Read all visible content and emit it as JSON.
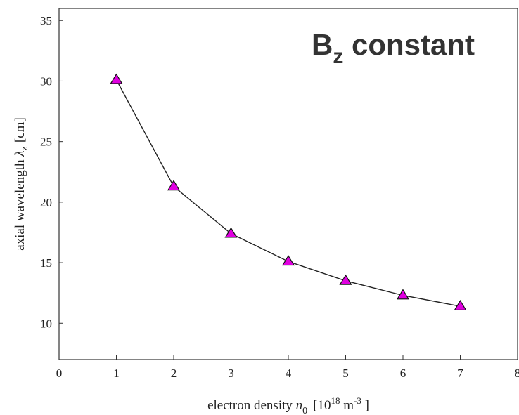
{
  "chart_data": {
    "type": "line",
    "x": [
      1,
      2,
      3,
      4,
      5,
      6,
      7
    ],
    "series": [
      {
        "values": [
          30.1,
          21.3,
          17.4,
          15.1,
          13.5,
          12.3,
          11.4
        ]
      }
    ],
    "xlim": [
      0,
      8
    ],
    "ylim": [
      7,
      36
    ],
    "x_ticks": [
      "0",
      "1",
      "2",
      "3",
      "4",
      "5",
      "6",
      "7",
      "8"
    ],
    "y_ticks": [
      "10",
      "15",
      "20",
      "25",
      "30",
      "35"
    ],
    "xlabel": {
      "text": "electron density ",
      "symbol": "n",
      "symbol_sub": "0",
      "unit_open": "[10",
      "unit_exp": "18",
      "unit_mid": " m",
      "unit_exp2": "-3",
      "unit_close": " ]"
    },
    "ylabel": {
      "text": "axial wavelength ",
      "symbol": "λ",
      "symbol_sub": "z",
      "unit": "[cm]"
    },
    "annotation": {
      "main": "B",
      "sub": "z",
      "rest": " constant"
    },
    "grid": false,
    "marker": "triangle",
    "colors": {
      "marker_fill": "#e000e0",
      "line": "#222222",
      "axis": "#333333"
    }
  }
}
